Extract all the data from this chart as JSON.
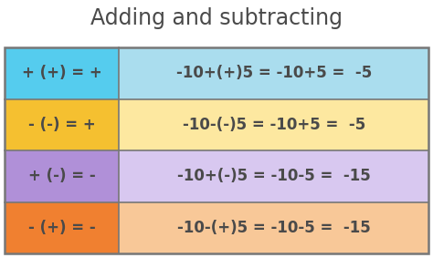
{
  "title": "Adding and subtracting",
  "title_color": "#4a4a4a",
  "title_fontsize": 17,
  "rows": [
    {
      "left_text": "+ (+) = +",
      "right_text": "-10+(+)5 = -10+5 =  -5",
      "left_bg": "#55ccee",
      "right_bg": "#aaddee"
    },
    {
      "left_text": "- (-) = +",
      "right_text": "-10-(-)5 = -10+5 =  -5",
      "left_bg": "#f5c030",
      "right_bg": "#fde8a0"
    },
    {
      "left_text": "+ (-) = -",
      "right_text": "-10+(-)5 = -10-5 =  -15",
      "left_bg": "#b090d8",
      "right_bg": "#d8c8f0"
    },
    {
      "left_text": "- (+) = -",
      "right_text": "-10-(+)5 = -10-5 =  -15",
      "left_bg": "#f08030",
      "right_bg": "#f8c898"
    }
  ],
  "text_color": "#4a4a4a",
  "row_fontsize": 12,
  "border_color": "#777777",
  "background_color": "#ffffff",
  "fig_width": 4.74,
  "fig_height": 2.83,
  "dpi": 100
}
